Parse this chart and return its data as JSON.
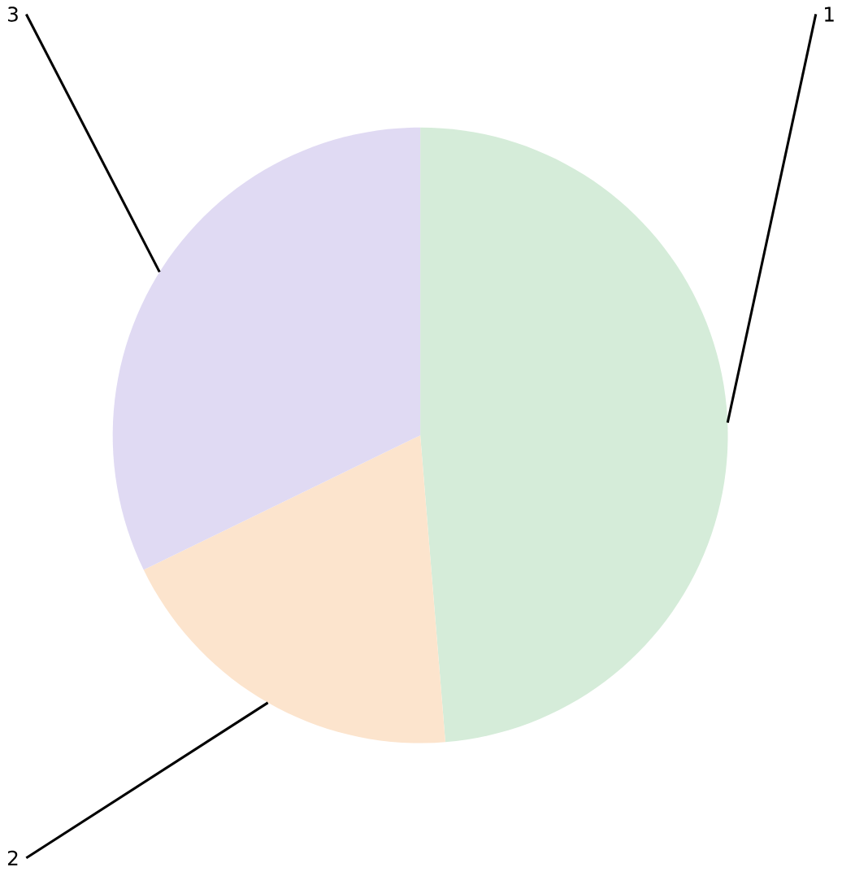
{
  "chart_data": {
    "type": "pie",
    "categories": [
      "1",
      "2",
      "3"
    ],
    "values": [
      48.7,
      19.1,
      32.2
    ],
    "colors": [
      "#d5ecd9",
      "#fce4cd",
      "#e0daf3"
    ]
  }
}
